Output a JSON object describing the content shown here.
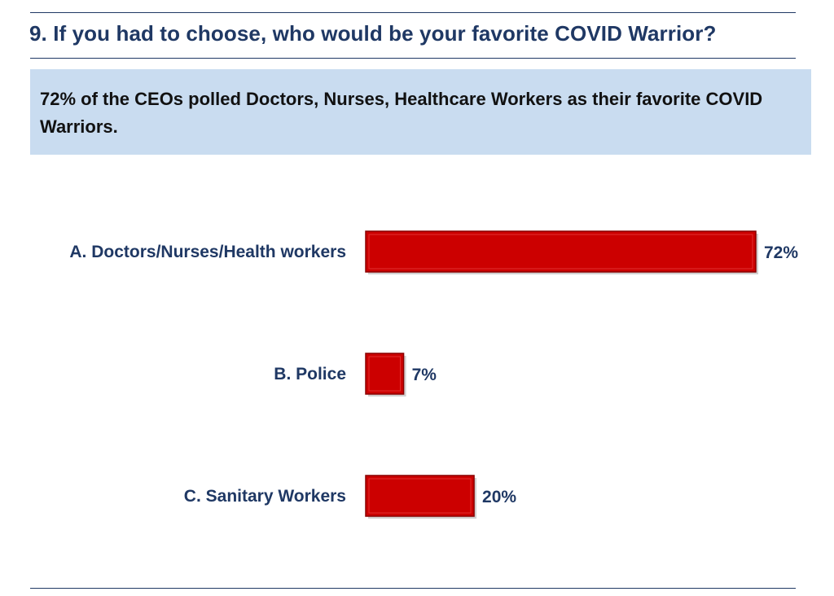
{
  "header": {
    "question": "9. If you had to choose, who would be your favorite COVID Warrior?"
  },
  "callout": {
    "text": "72% of the CEOs polled Doctors, Nurses, Healthcare Workers as their favorite COVID Warriors."
  },
  "colors": {
    "bar": "#cc0000",
    "label": "#1f3864",
    "rule": "#1f3864",
    "callout_bg": "#c9dcf0"
  },
  "chart_data": {
    "type": "bar",
    "orientation": "horizontal",
    "categories": [
      "A. Doctors/Nurses/Health workers",
      "B. Police",
      "C. Sanitary Workers"
    ],
    "values": [
      72,
      7,
      20
    ],
    "value_labels": [
      "72%",
      "7%",
      "20%"
    ],
    "unit": "%",
    "xlim": [
      0,
      72
    ],
    "grid": false,
    "legend": "none",
    "title": "",
    "xlabel": "",
    "ylabel": ""
  }
}
